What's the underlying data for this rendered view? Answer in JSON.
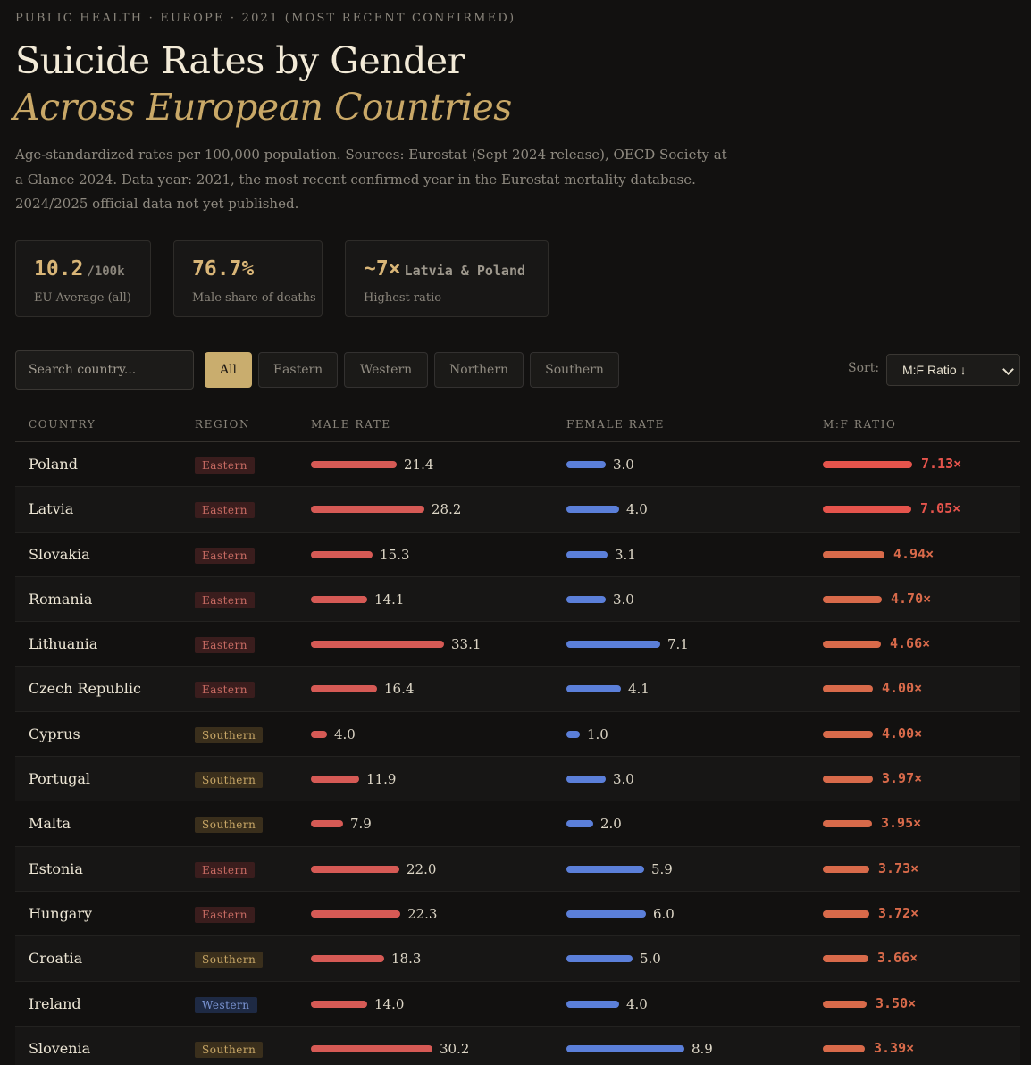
{
  "eyebrow": "PUBLIC HEALTH · EUROPE · 2021 (MOST RECENT CONFIRMED)",
  "title": {
    "line1": "Suicide Rates by Gender",
    "line2": "Across European Countries"
  },
  "description": "Age-standardized rates per 100,000 population. Sources: Eurostat (Sept 2024 release), OECD Society at a Glance 2024. Data year: 2021, the most recent confirmed year in the Eurostat mortality database. 2024/2025 official data not yet published.",
  "stats": [
    {
      "value": "10.2",
      "unit": "/100k",
      "label": "EU Average (all)"
    },
    {
      "value": "76.7%",
      "unit": "",
      "label": "Male share of deaths"
    },
    {
      "value": "~7×",
      "unit": "Latvia & Poland",
      "label": "Highest ratio"
    }
  ],
  "controls": {
    "search_placeholder": "Search country...",
    "filters": [
      "All",
      "Eastern",
      "Western",
      "Northern",
      "Southern"
    ],
    "active_filter": "All",
    "sort_label": "Sort:",
    "sort_value": "M:F Ratio ↓"
  },
  "table": {
    "headers": [
      "COUNTRY",
      "REGION",
      "MALE RATE",
      "FEMALE RATE",
      "M:F RATIO"
    ],
    "rows": [
      {
        "country": "Poland",
        "region": "Eastern",
        "male": "21.4",
        "female": "3.0",
        "ratio": "7.13×"
      },
      {
        "country": "Latvia",
        "region": "Eastern",
        "male": "28.2",
        "female": "4.0",
        "ratio": "7.05×"
      },
      {
        "country": "Slovakia",
        "region": "Eastern",
        "male": "15.3",
        "female": "3.1",
        "ratio": "4.94×"
      },
      {
        "country": "Romania",
        "region": "Eastern",
        "male": "14.1",
        "female": "3.0",
        "ratio": "4.70×"
      },
      {
        "country": "Lithuania",
        "region": "Eastern",
        "male": "33.1",
        "female": "7.1",
        "ratio": "4.66×"
      },
      {
        "country": "Czech Republic",
        "region": "Eastern",
        "male": "16.4",
        "female": "4.1",
        "ratio": "4.00×"
      },
      {
        "country": "Cyprus",
        "region": "Southern",
        "male": "4.0",
        "female": "1.0",
        "ratio": "4.00×"
      },
      {
        "country": "Portugal",
        "region": "Southern",
        "male": "11.9",
        "female": "3.0",
        "ratio": "3.97×"
      },
      {
        "country": "Malta",
        "region": "Southern",
        "male": "7.9",
        "female": "2.0",
        "ratio": "3.95×"
      },
      {
        "country": "Estonia",
        "region": "Eastern",
        "male": "22.0",
        "female": "5.9",
        "ratio": "3.73×"
      },
      {
        "country": "Hungary",
        "region": "Eastern",
        "male": "22.3",
        "female": "6.0",
        "ratio": "3.72×"
      },
      {
        "country": "Croatia",
        "region": "Southern",
        "male": "18.3",
        "female": "5.0",
        "ratio": "3.66×"
      },
      {
        "country": "Ireland",
        "region": "Western",
        "male": "14.0",
        "female": "4.0",
        "ratio": "3.50×"
      },
      {
        "country": "Slovenia",
        "region": "Southern",
        "male": "30.2",
        "female": "8.9",
        "ratio": "3.39×"
      }
    ]
  },
  "colors": {
    "male_bar": "#d65a55",
    "female_bar": "#5b7fd9",
    "ratio_high": "#e5544c",
    "ratio_mid": "#d86a4a",
    "accent": "#c9ad6e"
  }
}
